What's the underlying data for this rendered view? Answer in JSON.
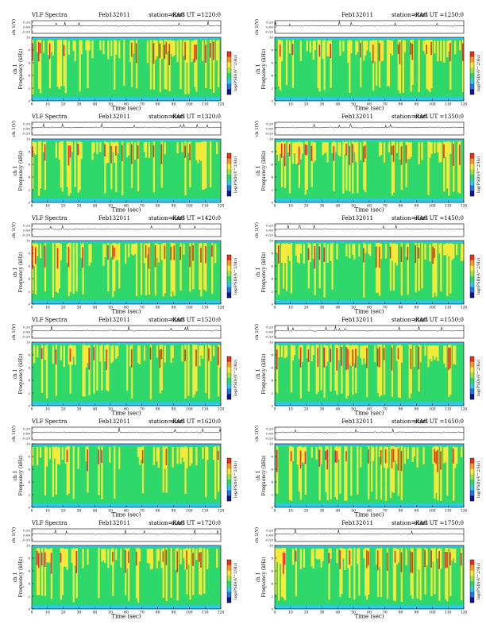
{
  "page": {
    "colors": {
      "background": "#ffffff",
      "spectrogram_base": "#2ec8e8",
      "spectrogram_green": "#2fd86a",
      "spectrogram_yellow": "#f3ea3a",
      "spectrogram_red": "#e8321e",
      "trace": "#000000"
    }
  },
  "chart_data": [
    {
      "type": "heatmap",
      "panel_id": "1220",
      "header": {
        "product": "VLF Spectra",
        "date": "Feb132011",
        "station": "station=KAG",
        "start": "start  UT  =1220:0"
      },
      "trace_ylabel": "ch 1(V)",
      "trace_ticks": [
        "0.20",
        "0.00",
        "-0.20"
      ],
      "spec_ylabel": "ch 1\nFrequency  (kHz)",
      "spec_yticks": [
        "0",
        "2",
        "4",
        "6",
        "8",
        "10"
      ],
      "xlabel": "Time  (sec)",
      "xticks": [
        "0",
        "10",
        "20",
        "30",
        "40",
        "50",
        "60",
        "70",
        "80",
        "90",
        "100",
        "110",
        "120"
      ],
      "xlim": [
        0,
        120
      ],
      "ylim": [
        0,
        10
      ],
      "colorbar_label": "log(PSD)(V^2/Hz)",
      "grid": false
    },
    {
      "type": "heatmap",
      "panel_id": "1250",
      "header": {
        "product": "",
        "date": "Feb132011",
        "station": "station=KAG",
        "start": "start  UT  =1250:0"
      },
      "trace_ylabel": "ch 1(V)",
      "trace_ticks": [
        "0.20",
        "0.00",
        "-0.20"
      ],
      "spec_ylabel": "ch 1\nFrequency  (kHz)",
      "spec_yticks": [
        "0",
        "2",
        "4",
        "6",
        "8",
        "10"
      ],
      "xlabel": "Time  (sec)",
      "xticks": [
        "0",
        "10",
        "20",
        "30",
        "40",
        "50",
        "60",
        "70",
        "80",
        "90",
        "100",
        "110",
        "120"
      ],
      "xlim": [
        0,
        120
      ],
      "ylim": [
        0,
        10
      ],
      "colorbar_label": "log(PSD)(V^2/Hz)",
      "grid": false
    },
    {
      "type": "heatmap",
      "panel_id": "1320",
      "header": {
        "product": "VLF Spectra",
        "date": "Feb132011",
        "station": "station=KAG",
        "start": "start  UT  =1320:0"
      },
      "trace_ylabel": "ch 1(V)",
      "trace_ticks": [
        "0.20",
        "0.00",
        "-0.20"
      ],
      "spec_ylabel": "ch 1\nFrequency  (kHz)",
      "spec_yticks": [
        "0",
        "2",
        "4",
        "6",
        "8",
        "10"
      ],
      "xlabel": "Time  (sec)",
      "xticks": [
        "0",
        "10",
        "20",
        "30",
        "40",
        "50",
        "60",
        "70",
        "80",
        "90",
        "100",
        "110",
        "120"
      ],
      "xlim": [
        0,
        120
      ],
      "ylim": [
        0,
        10
      ],
      "colorbar_label": "log(PSD)(V^2/Hz)",
      "grid": false
    },
    {
      "type": "heatmap",
      "panel_id": "1350",
      "header": {
        "product": "",
        "date": "Feb132011",
        "station": "station=KAG",
        "start": "start  UT  =1350:0"
      },
      "trace_ylabel": "ch 1(V)",
      "trace_ticks": [
        "0.20",
        "0.00",
        "-0.20"
      ],
      "spec_ylabel": "ch 1\nFrequency  (kHz)",
      "spec_yticks": [
        "0",
        "2",
        "4",
        "6",
        "8",
        "10"
      ],
      "xlabel": "Time  (sec)",
      "xticks": [
        "0",
        "10",
        "20",
        "30",
        "40",
        "50",
        "60",
        "70",
        "80",
        "90",
        "100",
        "110",
        "120"
      ],
      "xlim": [
        0,
        120
      ],
      "ylim": [
        0,
        10
      ],
      "colorbar_label": "log(PSD)(V^2/Hz)",
      "grid": false
    },
    {
      "type": "heatmap",
      "panel_id": "1420",
      "header": {
        "product": "VLF Spectra",
        "date": "Feb132011",
        "station": "station=KAG",
        "start": "start  UT  =1420:0"
      },
      "trace_ylabel": "ch 1(V)",
      "trace_ticks": [
        "0.20",
        "0.00",
        "-0.20"
      ],
      "spec_ylabel": "ch 1\nFrequency  (kHz)",
      "spec_yticks": [
        "0",
        "2",
        "4",
        "6",
        "8",
        "10"
      ],
      "xlabel": "Time  (sec)",
      "xticks": [
        "0",
        "10",
        "20",
        "30",
        "40",
        "50",
        "60",
        "70",
        "80",
        "90",
        "100",
        "110",
        "120"
      ],
      "xlim": [
        0,
        120
      ],
      "ylim": [
        0,
        10
      ],
      "colorbar_label": "log(PSD)(V^2/Hz)",
      "grid": false
    },
    {
      "type": "heatmap",
      "panel_id": "1450",
      "header": {
        "product": "",
        "date": "Feb132011",
        "station": "station=KAG",
        "start": "start  UT  =1450:0"
      },
      "trace_ylabel": "ch 1(V)",
      "trace_ticks": [
        "0.20",
        "0.00",
        "-0.20"
      ],
      "spec_ylabel": "ch 1\nFrequency  (kHz)",
      "spec_yticks": [
        "0",
        "2",
        "4",
        "6",
        "8",
        "10"
      ],
      "xlabel": "Time  (sec)",
      "xticks": [
        "0",
        "10",
        "20",
        "30",
        "40",
        "50",
        "60",
        "70",
        "80",
        "90",
        "100",
        "110",
        "120"
      ],
      "xlim": [
        0,
        120
      ],
      "ylim": [
        0,
        10
      ],
      "colorbar_label": "log(PSD)(V^2/Hz)",
      "grid": false
    },
    {
      "type": "heatmap",
      "panel_id": "1520",
      "header": {
        "product": "VLF Spectra",
        "date": "Feb132011",
        "station": "station=KAG",
        "start": "start  UT  =1520:0"
      },
      "trace_ylabel": "ch 1(V)",
      "trace_ticks": [
        "0.20",
        "0.00",
        "-0.20"
      ],
      "spec_ylabel": "ch 1\nFrequency  (kHz)",
      "spec_yticks": [
        "0",
        "2",
        "4",
        "6",
        "8",
        "10"
      ],
      "xlabel": "Time  (sec)",
      "xticks": [
        "0",
        "10",
        "20",
        "30",
        "40",
        "50",
        "60",
        "70",
        "80",
        "90",
        "100",
        "110",
        "120"
      ],
      "xlim": [
        0,
        120
      ],
      "ylim": [
        0,
        10
      ],
      "colorbar_label": "log(PSD)(V^2/Hz)",
      "grid": false
    },
    {
      "type": "heatmap",
      "panel_id": "1550",
      "header": {
        "product": "",
        "date": "Feb132011",
        "station": "station=KAG",
        "start": "start  UT  =1550:0"
      },
      "trace_ylabel": "ch 1(V)",
      "trace_ticks": [
        "0.20",
        "0.00",
        "-0.20"
      ],
      "spec_ylabel": "ch 1\nFrequency  (kHz)",
      "spec_yticks": [
        "0",
        "2",
        "4",
        "6",
        "8",
        "10"
      ],
      "xlabel": "Time  (sec)",
      "xticks": [
        "0",
        "10",
        "20",
        "30",
        "40",
        "50",
        "60",
        "70",
        "80",
        "90",
        "100",
        "110",
        "120"
      ],
      "xlim": [
        0,
        120
      ],
      "ylim": [
        0,
        10
      ],
      "colorbar_label": "log(PSD)(V^2/Hz)",
      "grid": false
    },
    {
      "type": "heatmap",
      "panel_id": "1620",
      "header": {
        "product": "VLF Spectra",
        "date": "Feb132011",
        "station": "station=KAG",
        "start": "start  UT  =1620:0"
      },
      "trace_ylabel": "ch 1(V)",
      "trace_ticks": [
        "0.20",
        "0.00",
        "-0.20"
      ],
      "spec_ylabel": "ch 1\nFrequency  (kHz)",
      "spec_yticks": [
        "0",
        "2",
        "4",
        "6",
        "8",
        "10"
      ],
      "xlabel": "Time  (sec)",
      "xticks": [
        "0",
        "10",
        "20",
        "30",
        "40",
        "50",
        "60",
        "70",
        "80",
        "90",
        "100",
        "110",
        "120"
      ],
      "xlim": [
        0,
        120
      ],
      "ylim": [
        0,
        10
      ],
      "colorbar_label": "log(PSD)(V^2/Hz)",
      "grid": false
    },
    {
      "type": "heatmap",
      "panel_id": "1650",
      "header": {
        "product": "",
        "date": "Feb132011",
        "station": "station=KAG",
        "start": "start  UT  =1650:0"
      },
      "trace_ylabel": "ch 1(V)",
      "trace_ticks": [
        "0.20",
        "0.00",
        "-0.20"
      ],
      "spec_ylabel": "ch 1\nFrequency  (kHz)",
      "spec_yticks": [
        "0",
        "2",
        "4",
        "6",
        "8",
        "10"
      ],
      "xlabel": "Time  (sec)",
      "xticks": [
        "0",
        "10",
        "20",
        "30",
        "40",
        "50",
        "60",
        "70",
        "80",
        "90",
        "100",
        "110",
        "120"
      ],
      "xlim": [
        0,
        120
      ],
      "ylim": [
        0,
        10
      ],
      "colorbar_label": "log(PSD)(V^2/Hz)",
      "grid": false
    },
    {
      "type": "heatmap",
      "panel_id": "1720",
      "header": {
        "product": "VLF Spectra",
        "date": "Feb132011",
        "station": "station=KAG",
        "start": "start  UT  =1720:0"
      },
      "trace_ylabel": "ch 1(V)",
      "trace_ticks": [
        "0.20",
        "0.00",
        "-0.20"
      ],
      "spec_ylabel": "ch 1\nFrequency  (kHz)",
      "spec_yticks": [
        "0",
        "2",
        "4",
        "6",
        "8",
        "10"
      ],
      "xlabel": "Time  (sec)",
      "xticks": [
        "0",
        "10",
        "20",
        "30",
        "40",
        "50",
        "60",
        "70",
        "80",
        "90",
        "100",
        "110",
        "120"
      ],
      "xlim": [
        0,
        120
      ],
      "ylim": [
        0,
        10
      ],
      "colorbar_label": "log(PSD)(V^2/Hz)",
      "grid": false
    },
    {
      "type": "heatmap",
      "panel_id": "1750",
      "header": {
        "product": "",
        "date": "Feb132011",
        "station": "station=KAG",
        "start": "start  UT  =1750:0"
      },
      "trace_ylabel": "ch 1(V)",
      "trace_ticks": [
        "0.20",
        "0.00",
        "-0.20"
      ],
      "spec_ylabel": "ch 1\nFrequency  (kHz)",
      "spec_yticks": [
        "0",
        "2",
        "4",
        "6",
        "8",
        "10"
      ],
      "xlabel": "Time  (sec)",
      "xticks": [
        "0",
        "10",
        "20",
        "30",
        "40",
        "50",
        "60",
        "70",
        "80",
        "90",
        "100",
        "110",
        "120"
      ],
      "xlim": [
        0,
        120
      ],
      "ylim": [
        0,
        10
      ],
      "colorbar_label": "log(PSD)(V^2/Hz)",
      "grid": false
    }
  ]
}
